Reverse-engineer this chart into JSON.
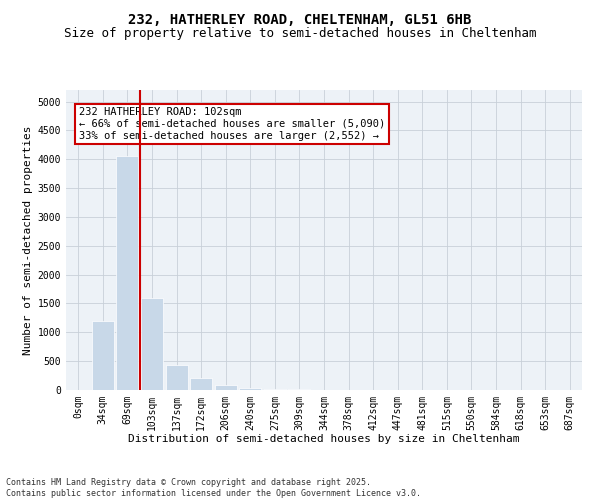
{
  "title_line1": "232, HATHERLEY ROAD, CHELTENHAM, GL51 6HB",
  "title_line2": "Size of property relative to semi-detached houses in Cheltenham",
  "xlabel": "Distribution of semi-detached houses by size in Cheltenham",
  "ylabel": "Number of semi-detached properties",
  "categories": [
    "0sqm",
    "34sqm",
    "69sqm",
    "103sqm",
    "137sqm",
    "172sqm",
    "206sqm",
    "240sqm",
    "275sqm",
    "309sqm",
    "344sqm",
    "378sqm",
    "412sqm",
    "447sqm",
    "481sqm",
    "515sqm",
    "550sqm",
    "584sqm",
    "618sqm",
    "653sqm",
    "687sqm"
  ],
  "values": [
    0,
    1200,
    4050,
    1600,
    430,
    200,
    90,
    40,
    20,
    10,
    5,
    3,
    2,
    1,
    1,
    0,
    0,
    0,
    0,
    0,
    0
  ],
  "highlight_bin": 3,
  "bar_color_normal": "#c8d8e8",
  "highlight_line_color": "#cc0000",
  "annotation_text": "232 HATHERLEY ROAD: 102sqm\n← 66% of semi-detached houses are smaller (5,090)\n33% of semi-detached houses are larger (2,552) →",
  "annotation_box_color": "#cc0000",
  "ylim": [
    0,
    5200
  ],
  "yticks": [
    0,
    500,
    1000,
    1500,
    2000,
    2500,
    3000,
    3500,
    4000,
    4500,
    5000
  ],
  "grid_color": "#c8d0d8",
  "background_color": "#edf2f7",
  "footer_line1": "Contains HM Land Registry data © Crown copyright and database right 2025.",
  "footer_line2": "Contains public sector information licensed under the Open Government Licence v3.0.",
  "title_fontsize": 10,
  "subtitle_fontsize": 9,
  "axis_label_fontsize": 8,
  "tick_fontsize": 7,
  "annotation_fontsize": 7.5,
  "footer_fontsize": 6
}
